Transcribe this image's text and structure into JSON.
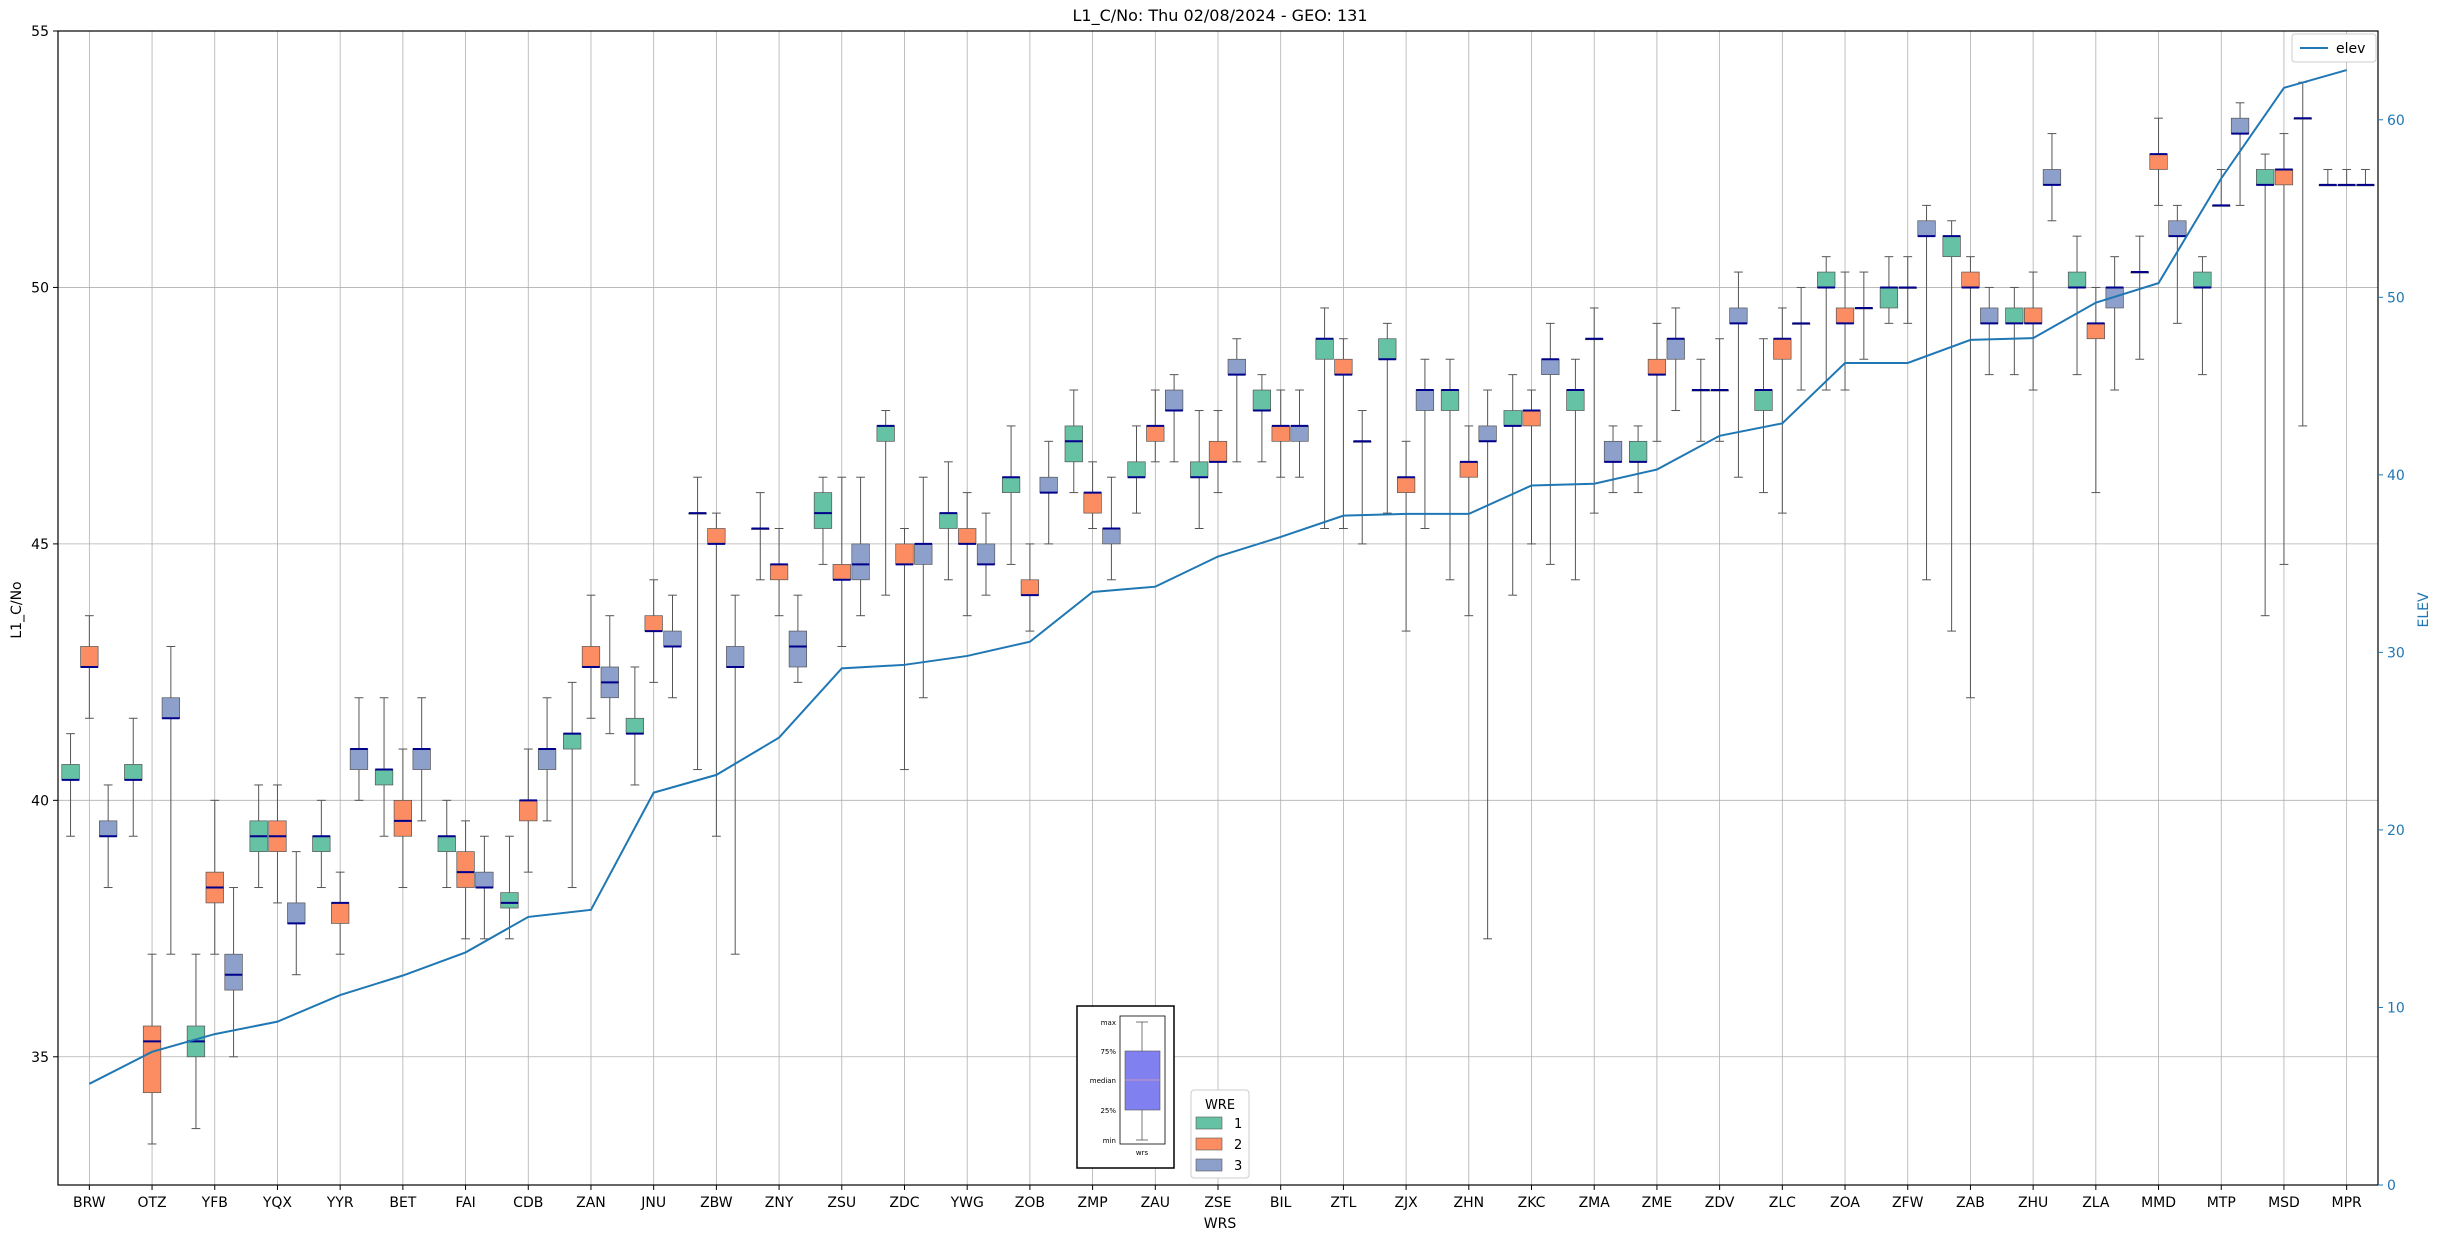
{
  "chart_data": {
    "type": "box",
    "title": "L1_C/No: Thu 02/08/2024 - GEO: 131",
    "xlabel": "WRS",
    "ylabel": "L1_C/No",
    "y2label": "ELEV",
    "ylim": [
      32.5,
      55
    ],
    "y2lim": [
      0,
      65
    ],
    "yticks": [
      35,
      40,
      45,
      50,
      55
    ],
    "y2ticks": [
      0,
      10,
      20,
      30,
      40,
      50,
      60
    ],
    "grid": true,
    "categories": [
      "BRW",
      "OTZ",
      "YFB",
      "YQX",
      "YYR",
      "BET",
      "FAI",
      "CDB",
      "ZAN",
      "JNU",
      "ZBW",
      "ZNY",
      "ZSU",
      "ZDC",
      "YWG",
      "ZOB",
      "ZMP",
      "ZAU",
      "ZSE",
      "BIL",
      "ZTL",
      "ZJX",
      "ZHN",
      "ZKC",
      "ZMA",
      "ZME",
      "ZDV",
      "ZLC",
      "ZOA",
      "ZFW",
      "ZAB",
      "ZHU",
      "ZLA",
      "MMD",
      "MTP",
      "MSD",
      "MPR"
    ],
    "hue_legend": {
      "title": "WRE",
      "entries": [
        {
          "label": "1",
          "color": "#66c2a5"
        },
        {
          "label": "2",
          "color": "#fc8d62"
        },
        {
          "label": "3",
          "color": "#8da0cb"
        }
      ]
    },
    "line_legend": {
      "label": "elev",
      "color": "#1f77b4",
      "location": "top-right"
    },
    "inset": {
      "labels": [
        "max",
        "75%",
        "median",
        "25%",
        "min"
      ],
      "xlabel": "wrs"
    },
    "boxes": [
      [
        [
          39.3,
          40.4,
          40.4,
          40.7,
          41.3
        ],
        [
          41.6,
          42.6,
          42.6,
          43.0,
          43.6
        ],
        [
          38.3,
          39.3,
          39.3,
          39.6,
          40.3
        ]
      ],
      [
        [
          39.3,
          40.4,
          40.4,
          40.7,
          41.6
        ],
        [
          33.3,
          34.3,
          35.3,
          35.6,
          37.0
        ],
        [
          37.0,
          41.6,
          41.6,
          42.0,
          43.0
        ]
      ],
      [
        [
          33.6,
          35.0,
          35.3,
          35.6,
          37.0
        ],
        [
          37.0,
          38.0,
          38.3,
          38.6,
          40.0
        ],
        [
          35.0,
          36.3,
          36.6,
          37.0,
          38.3
        ]
      ],
      [
        [
          38.3,
          39.0,
          39.3,
          39.6,
          40.3
        ],
        [
          38.0,
          39.0,
          39.3,
          39.6,
          40.3
        ],
        [
          36.6,
          37.6,
          37.6,
          38.0,
          39.0
        ]
      ],
      [
        [
          38.3,
          39.0,
          39.3,
          39.3,
          40.0
        ],
        [
          37.0,
          37.6,
          38.0,
          38.0,
          38.6
        ],
        [
          40.0,
          40.6,
          41.0,
          41.0,
          42.0
        ]
      ],
      [
        [
          39.3,
          40.3,
          40.6,
          40.6,
          42.0
        ],
        [
          38.3,
          39.3,
          39.6,
          40.0,
          41.0
        ],
        [
          39.6,
          40.6,
          41.0,
          41.0,
          42.0
        ]
      ],
      [
        [
          38.3,
          39.0,
          39.3,
          39.3,
          40.0
        ],
        [
          37.3,
          38.3,
          38.6,
          39.0,
          39.6
        ],
        [
          37.3,
          38.3,
          38.3,
          38.6,
          39.3
        ]
      ],
      [
        [
          37.3,
          37.9,
          38.0,
          38.2,
          39.3
        ],
        [
          38.6,
          39.6,
          40.0,
          40.0,
          41.0
        ],
        [
          39.6,
          40.6,
          41.0,
          41.0,
          42.0
        ]
      ],
      [
        [
          38.3,
          41.0,
          41.3,
          41.3,
          42.3
        ],
        [
          41.6,
          42.6,
          42.6,
          43.0,
          44.0
        ],
        [
          41.3,
          42.0,
          42.3,
          42.6,
          43.6
        ]
      ],
      [
        [
          40.3,
          41.3,
          41.3,
          41.6,
          42.6
        ],
        [
          42.3,
          43.3,
          43.3,
          43.6,
          44.3
        ],
        [
          42.0,
          43.0,
          43.0,
          43.3,
          44.0
        ]
      ],
      [
        [
          40.6,
          45.6,
          45.6,
          45.6,
          46.3
        ],
        [
          39.3,
          45.0,
          45.0,
          45.3,
          45.6
        ],
        [
          37.0,
          42.6,
          42.6,
          43.0,
          44.0
        ]
      ],
      [
        [
          44.3,
          45.3,
          45.3,
          45.3,
          46.0
        ],
        [
          43.6,
          44.3,
          44.6,
          44.6,
          45.3
        ],
        [
          42.3,
          42.6,
          43.0,
          43.3,
          44.0
        ]
      ],
      [
        [
          44.6,
          45.3,
          45.6,
          46.0,
          46.3
        ],
        [
          43.0,
          44.3,
          44.3,
          44.6,
          46.3
        ],
        [
          43.6,
          44.3,
          44.6,
          45.0,
          46.3
        ]
      ],
      [
        [
          44.0,
          47.0,
          47.3,
          47.3,
          47.6
        ],
        [
          40.6,
          44.6,
          44.6,
          45.0,
          45.3
        ],
        [
          42.0,
          44.6,
          45.0,
          45.0,
          46.3
        ]
      ],
      [
        [
          44.3,
          45.3,
          45.6,
          45.6,
          46.6
        ],
        [
          43.6,
          45.0,
          45.0,
          45.3,
          46.0
        ],
        [
          44.0,
          44.6,
          44.6,
          45.0,
          45.6
        ]
      ],
      [
        [
          44.6,
          46.0,
          46.3,
          46.3,
          47.3
        ],
        [
          43.3,
          44.0,
          44.0,
          44.3,
          45.0
        ],
        [
          45.0,
          46.0,
          46.0,
          46.3,
          47.0
        ]
      ],
      [
        [
          46.0,
          46.6,
          47.0,
          47.3,
          48.0
        ],
        [
          45.3,
          45.6,
          46.0,
          46.0,
          46.6
        ],
        [
          44.3,
          45.0,
          45.3,
          45.3,
          46.3
        ]
      ],
      [
        [
          45.6,
          46.3,
          46.3,
          46.6,
          47.3
        ],
        [
          46.6,
          47.0,
          47.3,
          47.3,
          48.0
        ],
        [
          46.6,
          47.6,
          47.6,
          48.0,
          48.3
        ]
      ],
      [
        [
          45.3,
          46.3,
          46.3,
          46.6,
          47.6
        ],
        [
          46.0,
          46.6,
          46.6,
          47.0,
          47.6
        ],
        [
          46.6,
          48.3,
          48.3,
          48.6,
          49.0
        ]
      ],
      [
        [
          46.6,
          47.6,
          47.6,
          48.0,
          48.3
        ],
        [
          46.3,
          47.0,
          47.3,
          47.3,
          48.0
        ],
        [
          46.3,
          47.0,
          47.3,
          47.3,
          48.0
        ]
      ],
      [
        [
          45.3,
          48.6,
          49.0,
          49.0,
          49.6
        ],
        [
          45.3,
          48.3,
          48.3,
          48.6,
          49.0
        ],
        [
          45.0,
          47.0,
          47.0,
          47.0,
          47.6
        ]
      ],
      [
        [
          45.6,
          48.6,
          48.6,
          49.0,
          49.3
        ],
        [
          43.3,
          46.0,
          46.3,
          46.3,
          47.0
        ],
        [
          45.3,
          47.6,
          48.0,
          48.0,
          48.6
        ]
      ],
      [
        [
          44.3,
          47.6,
          48.0,
          48.0,
          48.6
        ],
        [
          43.6,
          46.3,
          46.6,
          46.6,
          47.3
        ],
        [
          37.3,
          47.0,
          47.0,
          47.3,
          48.0
        ]
      ],
      [
        [
          44.0,
          47.3,
          47.3,
          47.6,
          48.3
        ],
        [
          45.0,
          47.3,
          47.6,
          47.6,
          48.0
        ],
        [
          44.6,
          48.3,
          48.6,
          48.6,
          49.3
        ]
      ],
      [
        [
          44.3,
          47.6,
          48.0,
          48.0,
          48.6
        ],
        [
          45.6,
          49.0,
          49.0,
          49.0,
          49.6
        ],
        [
          46.0,
          46.6,
          46.6,
          47.0,
          47.3
        ]
      ],
      [
        [
          46.0,
          46.6,
          46.6,
          47.0,
          47.3
        ],
        [
          47.0,
          48.3,
          48.3,
          48.6,
          49.3
        ],
        [
          47.6,
          48.6,
          49.0,
          49.0,
          49.6
        ]
      ],
      [
        [
          47.0,
          48.0,
          48.0,
          48.0,
          48.6
        ],
        [
          47.0,
          48.0,
          48.0,
          48.0,
          49.0
        ],
        [
          46.3,
          49.3,
          49.3,
          49.6,
          50.3
        ]
      ],
      [
        [
          46.0,
          47.6,
          48.0,
          48.0,
          49.0
        ],
        [
          45.6,
          48.6,
          49.0,
          49.0,
          49.6
        ],
        [
          48.0,
          49.3,
          49.3,
          49.3,
          50.0
        ]
      ],
      [
        [
          48.0,
          50.0,
          50.0,
          50.3,
          50.6
        ],
        [
          48.0,
          49.3,
          49.3,
          49.6,
          50.3
        ],
        [
          48.6,
          49.6,
          49.6,
          49.6,
          50.3
        ]
      ],
      [
        [
          49.3,
          49.6,
          50.0,
          50.0,
          50.6
        ],
        [
          49.3,
          50.0,
          50.0,
          50.0,
          50.6
        ],
        [
          44.3,
          51.0,
          51.0,
          51.3,
          51.6
        ]
      ],
      [
        [
          43.3,
          50.6,
          51.0,
          51.0,
          51.3
        ],
        [
          42.0,
          50.0,
          50.0,
          50.3,
          50.6
        ],
        [
          48.3,
          49.3,
          49.3,
          49.6,
          50.0
        ]
      ],
      [
        [
          48.3,
          49.3,
          49.3,
          49.6,
          50.0
        ],
        [
          48.0,
          49.3,
          49.3,
          49.6,
          50.3
        ],
        [
          51.3,
          52.0,
          52.0,
          52.3,
          53.0
        ]
      ],
      [
        [
          48.3,
          50.0,
          50.0,
          50.3,
          51.0
        ],
        [
          46.0,
          49.0,
          49.3,
          49.3,
          50.0
        ],
        [
          48.0,
          49.6,
          50.0,
          50.0,
          50.6
        ]
      ],
      [
        [
          48.6,
          50.3,
          50.3,
          50.3,
          51.0
        ],
        [
          51.6,
          52.3,
          52.6,
          52.6,
          53.3
        ],
        [
          49.3,
          51.0,
          51.0,
          51.3,
          51.6
        ]
      ],
      [
        [
          48.3,
          50.0,
          50.0,
          50.3,
          50.6
        ],
        [
          51.6,
          51.6,
          51.6,
          51.6,
          52.3
        ],
        [
          51.6,
          53.0,
          53.0,
          53.3,
          53.6
        ]
      ],
      [
        [
          43.6,
          52.0,
          52.0,
          52.3,
          52.6
        ],
        [
          44.6,
          52.0,
          52.3,
          52.3,
          53.0
        ],
        [
          47.3,
          53.3,
          53.3,
          53.3,
          54.0
        ]
      ],
      [
        [
          52.0,
          52.0,
          52.0,
          52.0,
          52.3
        ],
        [
          52.0,
          52.0,
          52.0,
          52.0,
          52.3
        ],
        [
          52.0,
          52.0,
          52.0,
          52.0,
          52.3
        ]
      ]
    ],
    "elev": [
      5.7,
      7.5,
      8.5,
      9.2,
      10.7,
      11.8,
      13.1,
      15.1,
      15.5,
      22.1,
      23.1,
      25.2,
      29.1,
      29.3,
      29.8,
      30.6,
      33.4,
      33.7,
      35.4,
      36.5,
      37.7,
      37.8,
      37.8,
      39.4,
      39.5,
      40.3,
      42.2,
      42.9,
      46.3,
      46.3,
      47.6,
      47.7,
      49.7,
      50.8,
      56.7,
      61.8,
      62.8
    ]
  }
}
